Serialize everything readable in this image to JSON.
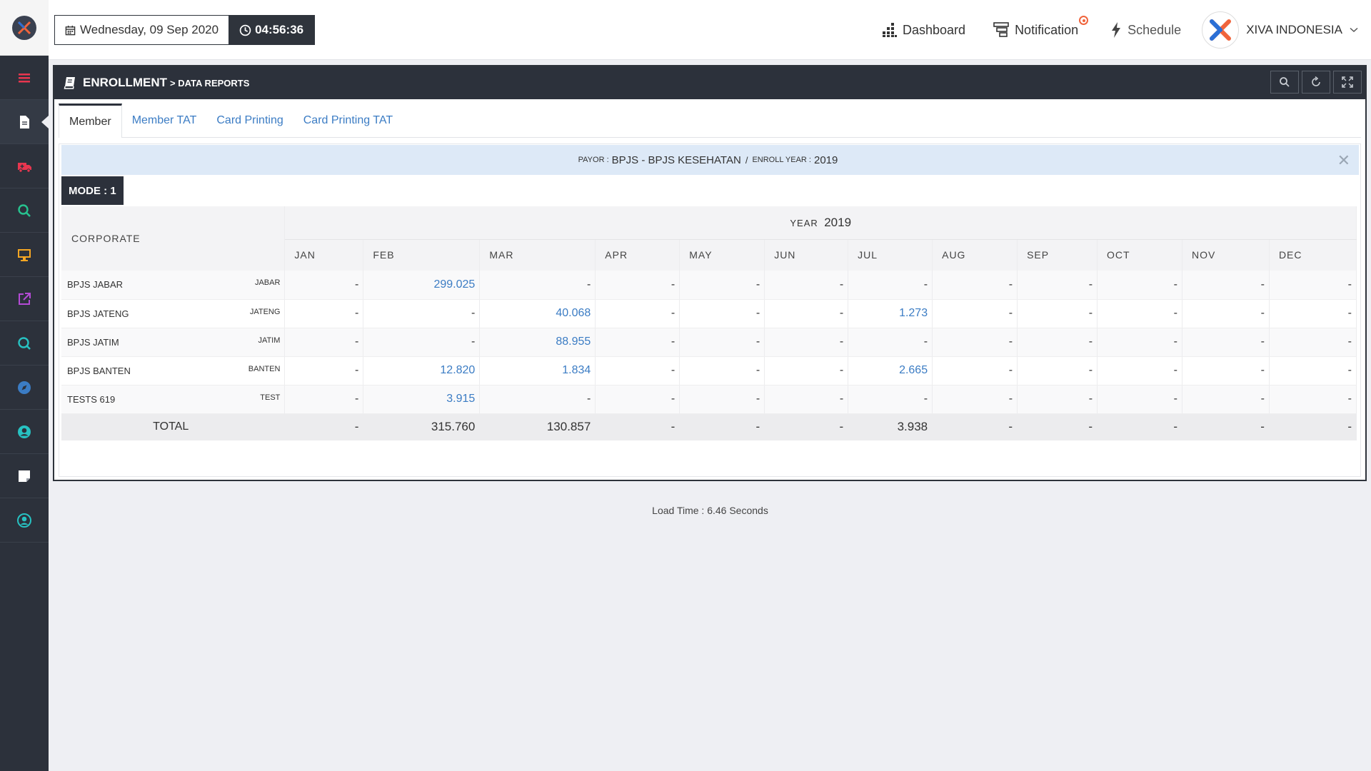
{
  "app": {
    "logo": "xiva-logo"
  },
  "sidebar": {
    "items": [
      {
        "name": "menu",
        "icon": "bars-icon",
        "color": "#e8364f"
      },
      {
        "name": "reports",
        "icon": "document-icon",
        "color": "#ffffff"
      },
      {
        "name": "ambulance",
        "icon": "ambulance-icon",
        "color": "#e8364f"
      },
      {
        "name": "search",
        "icon": "search-icon",
        "color": "#27c28f"
      },
      {
        "name": "monitor",
        "icon": "monitor-icon",
        "color": "#f5a623"
      },
      {
        "name": "external",
        "icon": "external-link-icon",
        "color": "#b44bd6"
      },
      {
        "name": "refresh",
        "icon": "refresh-search-icon",
        "color": "#27c2c2"
      },
      {
        "name": "compass",
        "icon": "compass-icon",
        "color": "#3b7cc4"
      },
      {
        "name": "user",
        "icon": "user-circle-icon",
        "color": "#27c2c2"
      },
      {
        "name": "note",
        "icon": "note-icon",
        "color": "#ffffff"
      },
      {
        "name": "profile",
        "icon": "profile-circle-icon",
        "color": "#27c2c2"
      }
    ]
  },
  "header": {
    "date": "Wednesday, 09 Sep 2020",
    "time": "04:56:36",
    "nav": {
      "dashboard": "Dashboard",
      "notification": "Notification",
      "schedule": "Schedule"
    },
    "account": "XIVA INDONESIA"
  },
  "panel": {
    "title": "ENROLLMENT",
    "breadcrumb": "> DATA REPORTS",
    "tabs": [
      "Member",
      "Member TAT",
      "Card Printing",
      "Card Printing TAT"
    ],
    "active_tab": 0
  },
  "info": {
    "payor_label": "PAYOR :",
    "payor_value": "BPJS - BPJS KESEHATAN",
    "separator": "/",
    "year_label": "ENROLL YEAR :",
    "year_value": "2019"
  },
  "mode": "MODE : 1",
  "table": {
    "corporate_header": "CORPORATE",
    "year_label": "YEAR",
    "year_value": "2019",
    "months": [
      "JAN",
      "FEB",
      "MAR",
      "APR",
      "MAY",
      "JUN",
      "JUL",
      "AUG",
      "SEP",
      "OCT",
      "NOV",
      "DEC"
    ],
    "rows": [
      {
        "name": "BPJS JABAR",
        "code": "JABAR",
        "values": [
          "-",
          "299.025",
          "-",
          "-",
          "-",
          "-",
          "-",
          "-",
          "-",
          "-",
          "-",
          "-"
        ]
      },
      {
        "name": "BPJS JATENG",
        "code": "JATENG",
        "values": [
          "-",
          "-",
          "40.068",
          "-",
          "-",
          "-",
          "1.273",
          "-",
          "-",
          "-",
          "-",
          "-"
        ]
      },
      {
        "name": "BPJS JATIM",
        "code": "JATIM",
        "values": [
          "-",
          "-",
          "88.955",
          "-",
          "-",
          "-",
          "-",
          "-",
          "-",
          "-",
          "-",
          "-"
        ]
      },
      {
        "name": "BPJS BANTEN",
        "code": "BANTEN",
        "values": [
          "-",
          "12.820",
          "1.834",
          "-",
          "-",
          "-",
          "2.665",
          "-",
          "-",
          "-",
          "-",
          "-"
        ]
      },
      {
        "name": "TESTS 619",
        "code": "TEST",
        "values": [
          "-",
          "3.915",
          "-",
          "-",
          "-",
          "-",
          "-",
          "-",
          "-",
          "-",
          "-",
          "-"
        ]
      }
    ],
    "total_label": "TOTAL",
    "totals": [
      "-",
      "315.760",
      "130.857",
      "-",
      "-",
      "-",
      "3.938",
      "-",
      "-",
      "-",
      "-",
      "-"
    ]
  },
  "load_time": "Load Time : 6.46 Seconds"
}
